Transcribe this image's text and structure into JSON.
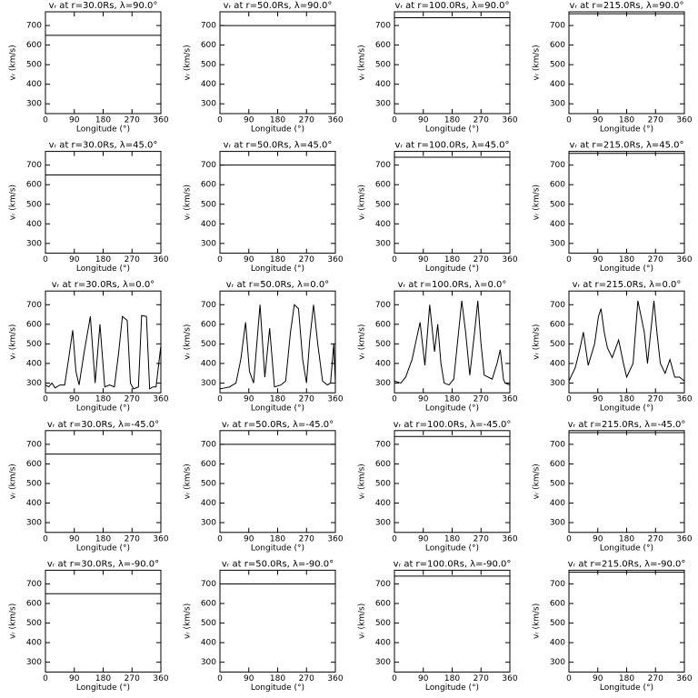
{
  "chart_data": [
    {
      "type": "line",
      "title": "vᵣ at r=30.0Rs,  λ=90.0°",
      "xlabel": "Longitude (°)",
      "ylabel": "vᵣ (km/s)",
      "x": [
        0,
        360
      ],
      "values": [
        650,
        650
      ],
      "xlim": [
        0,
        360
      ],
      "ylim": [
        250,
        770
      ],
      "xticks": [
        0,
        90,
        180,
        270,
        360
      ],
      "yticks": [
        300,
        400,
        500,
        600,
        700
      ],
      "color": "#000000"
    },
    {
      "type": "line",
      "title": "vᵣ at r=50.0Rs,  λ=90.0°",
      "xlabel": "Longitude (°)",
      "ylabel": "vᵣ (km/s)",
      "x": [
        0,
        360
      ],
      "values": [
        700,
        700
      ],
      "xlim": [
        0,
        360
      ],
      "ylim": [
        250,
        770
      ],
      "xticks": [
        0,
        90,
        180,
        270,
        360
      ],
      "yticks": [
        300,
        400,
        500,
        600,
        700
      ],
      "color": "#000000"
    },
    {
      "type": "line",
      "title": "vᵣ at r=100.0Rs,  λ=90.0°",
      "xlabel": "Longitude (°)",
      "ylabel": "vᵣ (km/s)",
      "x": [
        0,
        360
      ],
      "values": [
        740,
        740
      ],
      "xlim": [
        0,
        360
      ],
      "ylim": [
        250,
        770
      ],
      "xticks": [
        0,
        90,
        180,
        270,
        360
      ],
      "yticks": [
        300,
        400,
        500,
        600,
        700
      ],
      "color": "#000000"
    },
    {
      "type": "line",
      "title": "vᵣ at r=215.0Rs,  λ=90.0°",
      "xlabel": "Longitude (°)",
      "ylabel": "vᵣ (km/s)",
      "x": [
        0,
        360
      ],
      "values": [
        760,
        760
      ],
      "xlim": [
        0,
        360
      ],
      "ylim": [
        250,
        770
      ],
      "xticks": [
        0,
        90,
        180,
        270,
        360
      ],
      "yticks": [
        300,
        400,
        500,
        600,
        700
      ],
      "color": "#000000"
    },
    {
      "type": "line",
      "title": "vᵣ at r=30.0Rs,  λ=45.0°",
      "xlabel": "Longitude (°)",
      "ylabel": "vᵣ (km/s)",
      "x": [
        0,
        360
      ],
      "values": [
        650,
        650
      ],
      "xlim": [
        0,
        360
      ],
      "ylim": [
        250,
        770
      ],
      "xticks": [
        0,
        90,
        180,
        270,
        360
      ],
      "yticks": [
        300,
        400,
        500,
        600,
        700
      ],
      "color": "#000000"
    },
    {
      "type": "line",
      "title": "vᵣ at r=50.0Rs,  λ=45.0°",
      "xlabel": "Longitude (°)",
      "ylabel": "vᵣ (km/s)",
      "x": [
        0,
        360
      ],
      "values": [
        700,
        700
      ],
      "xlim": [
        0,
        360
      ],
      "ylim": [
        250,
        770
      ],
      "xticks": [
        0,
        90,
        180,
        270,
        360
      ],
      "yticks": [
        300,
        400,
        500,
        600,
        700
      ],
      "color": "#000000"
    },
    {
      "type": "line",
      "title": "vᵣ at r=100.0Rs,  λ=45.0°",
      "xlabel": "Longitude (°)",
      "ylabel": "vᵣ (km/s)",
      "x": [
        0,
        360
      ],
      "values": [
        740,
        740
      ],
      "xlim": [
        0,
        360
      ],
      "ylim": [
        250,
        770
      ],
      "xticks": [
        0,
        90,
        180,
        270,
        360
      ],
      "yticks": [
        300,
        400,
        500,
        600,
        700
      ],
      "color": "#000000"
    },
    {
      "type": "line",
      "title": "vᵣ at r=215.0Rs,  λ=45.0°",
      "xlabel": "Longitude (°)",
      "ylabel": "vᵣ (km/s)",
      "x": [
        0,
        360
      ],
      "values": [
        760,
        760
      ],
      "xlim": [
        0,
        360
      ],
      "ylim": [
        250,
        770
      ],
      "xticks": [
        0,
        90,
        180,
        270,
        360
      ],
      "yticks": [
        300,
        400,
        500,
        600,
        700
      ],
      "color": "#000000"
    },
    {
      "type": "line",
      "title": "vᵣ at r=30.0Rs,  λ=0.0°",
      "xlabel": "Longitude (°)",
      "ylabel": "vᵣ (km/s)",
      "x": [
        0,
        10,
        20,
        30,
        45,
        60,
        72,
        85,
        95,
        105,
        120,
        140,
        155,
        170,
        185,
        200,
        215,
        228,
        240,
        255,
        265,
        275,
        290,
        300,
        315,
        325,
        335,
        345,
        352,
        360
      ],
      "values": [
        290,
        280,
        300,
        275,
        290,
        290,
        420,
        570,
        360,
        290,
        450,
        640,
        300,
        600,
        280,
        290,
        280,
        450,
        640,
        620,
        300,
        270,
        280,
        645,
        640,
        270,
        280,
        280,
        380,
        490
      ],
      "xlim": [
        0,
        360
      ],
      "ylim": [
        250,
        770
      ],
      "xticks": [
        0,
        90,
        180,
        270,
        360
      ],
      "yticks": [
        300,
        400,
        500,
        600,
        700
      ],
      "color": "#000000"
    },
    {
      "type": "line",
      "title": "vᵣ at r=50.0Rs,  λ=0.0°",
      "xlabel": "Longitude (°)",
      "ylabel": "vᵣ (km/s)",
      "x": [
        0,
        15,
        30,
        50,
        65,
        80,
        92,
        105,
        125,
        140,
        155,
        170,
        190,
        205,
        220,
        232,
        245,
        258,
        270,
        280,
        292,
        305,
        320,
        335,
        345,
        355,
        360
      ],
      "values": [
        270,
        275,
        280,
        300,
        420,
        610,
        360,
        300,
        700,
        330,
        580,
        280,
        290,
        310,
        560,
        700,
        680,
        420,
        300,
        520,
        700,
        500,
        310,
        290,
        300,
        500,
        300
      ],
      "xlim": [
        0,
        360
      ],
      "ylim": [
        250,
        770
      ],
      "xticks": [
        0,
        90,
        180,
        270,
        360
      ],
      "yticks": [
        300,
        400,
        500,
        600,
        700
      ],
      "color": "#000000"
    },
    {
      "type": "line",
      "title": "vᵣ at r=100.0Rs,  λ=0.0°",
      "xlabel": "Longitude (°)",
      "ylabel": "vᵣ (km/s)",
      "x": [
        0,
        20,
        35,
        55,
        68,
        80,
        95,
        110,
        125,
        135,
        145,
        155,
        170,
        185,
        200,
        210,
        222,
        235,
        250,
        260,
        270,
        280,
        305,
        320,
        330,
        340,
        345,
        360
      ],
      "values": [
        310,
        300,
        330,
        420,
        520,
        610,
        390,
        700,
        460,
        600,
        400,
        300,
        290,
        320,
        560,
        720,
        560,
        340,
        560,
        720,
        500,
        340,
        320,
        400,
        470,
        320,
        300,
        290
      ],
      "xlim": [
        0,
        360
      ],
      "ylim": [
        250,
        770
      ],
      "xticks": [
        0,
        90,
        180,
        270,
        360
      ],
      "yticks": [
        300,
        400,
        500,
        600,
        700
      ],
      "color": "#000000"
    },
    {
      "type": "line",
      "title": "vᵣ at r=215.0Rs,  λ=0.0°",
      "xlabel": "Longitude (°)",
      "ylabel": "vᵣ (km/s)",
      "x": [
        0,
        20,
        35,
        45,
        60,
        80,
        92,
        100,
        110,
        120,
        135,
        155,
        170,
        180,
        200,
        215,
        225,
        235,
        245,
        255,
        265,
        275,
        285,
        300,
        315,
        330,
        345,
        360
      ],
      "values": [
        310,
        380,
        480,
        560,
        390,
        500,
        640,
        680,
        560,
        480,
        430,
        520,
        400,
        330,
        400,
        720,
        640,
        560,
        400,
        560,
        720,
        550,
        400,
        350,
        420,
        330,
        330,
        310
      ],
      "xlim": [
        0,
        360
      ],
      "ylim": [
        250,
        770
      ],
      "xticks": [
        0,
        90,
        180,
        270,
        360
      ],
      "yticks": [
        300,
        400,
        500,
        600,
        700
      ],
      "color": "#000000"
    },
    {
      "type": "line",
      "title": "vᵣ at r=30.0Rs,  λ=-45.0°",
      "xlabel": "Longitude (°)",
      "ylabel": "vᵣ (km/s)",
      "x": [
        0,
        360
      ],
      "values": [
        650,
        650
      ],
      "xlim": [
        0,
        360
      ],
      "ylim": [
        250,
        770
      ],
      "xticks": [
        0,
        90,
        180,
        270,
        360
      ],
      "yticks": [
        300,
        400,
        500,
        600,
        700
      ],
      "color": "#000000"
    },
    {
      "type": "line",
      "title": "vᵣ at r=50.0Rs,  λ=-45.0°",
      "xlabel": "Longitude (°)",
      "ylabel": "vᵣ (km/s)",
      "x": [
        0,
        360
      ],
      "values": [
        700,
        700
      ],
      "xlim": [
        0,
        360
      ],
      "ylim": [
        250,
        770
      ],
      "xticks": [
        0,
        90,
        180,
        270,
        360
      ],
      "yticks": [
        300,
        400,
        500,
        600,
        700
      ],
      "color": "#000000"
    },
    {
      "type": "line",
      "title": "vᵣ at r=100.0Rs,  λ=-45.0°",
      "xlabel": "Longitude (°)",
      "ylabel": "vᵣ (km/s)",
      "x": [
        0,
        360
      ],
      "values": [
        740,
        740
      ],
      "xlim": [
        0,
        360
      ],
      "ylim": [
        250,
        770
      ],
      "xticks": [
        0,
        90,
        180,
        270,
        360
      ],
      "yticks": [
        300,
        400,
        500,
        600,
        700
      ],
      "color": "#000000"
    },
    {
      "type": "line",
      "title": "vᵣ at r=215.0Rs,  λ=-45.0°",
      "xlabel": "Longitude (°)",
      "ylabel": "vᵣ (km/s)",
      "x": [
        0,
        360
      ],
      "values": [
        760,
        760
      ],
      "xlim": [
        0,
        360
      ],
      "ylim": [
        250,
        770
      ],
      "xticks": [
        0,
        90,
        180,
        270,
        360
      ],
      "yticks": [
        300,
        400,
        500,
        600,
        700
      ],
      "color": "#000000"
    },
    {
      "type": "line",
      "title": "vᵣ at r=30.0Rs,  λ=-90.0°",
      "xlabel": "Longitude (°)",
      "ylabel": "vᵣ (km/s)",
      "x": [
        0,
        360
      ],
      "values": [
        650,
        650
      ],
      "xlim": [
        0,
        360
      ],
      "ylim": [
        250,
        770
      ],
      "xticks": [
        0,
        90,
        180,
        270,
        360
      ],
      "yticks": [
        300,
        400,
        500,
        600,
        700
      ],
      "color": "#000000"
    },
    {
      "type": "line",
      "title": "vᵣ at r=50.0Rs,  λ=-90.0°",
      "xlabel": "Longitude (°)",
      "ylabel": "vᵣ (km/s)",
      "x": [
        0,
        360
      ],
      "values": [
        700,
        700
      ],
      "xlim": [
        0,
        360
      ],
      "ylim": [
        250,
        770
      ],
      "xticks": [
        0,
        90,
        180,
        270,
        360
      ],
      "yticks": [
        300,
        400,
        500,
        600,
        700
      ],
      "color": "#000000"
    },
    {
      "type": "line",
      "title": "vᵣ at r=100.0Rs,  λ=-90.0°",
      "xlabel": "Longitude (°)",
      "ylabel": "vᵣ (km/s)",
      "x": [
        0,
        360
      ],
      "values": [
        740,
        740
      ],
      "xlim": [
        0,
        360
      ],
      "ylim": [
        250,
        770
      ],
      "xticks": [
        0,
        90,
        180,
        270,
        360
      ],
      "yticks": [
        300,
        400,
        500,
        600,
        700
      ],
      "color": "#000000"
    },
    {
      "type": "line",
      "title": "vᵣ at r=215.0Rs,  λ=-90.0°",
      "xlabel": "Longitude (°)",
      "ylabel": "vᵣ (km/s)",
      "x": [
        0,
        360
      ],
      "values": [
        760,
        760
      ],
      "xlim": [
        0,
        360
      ],
      "ylim": [
        250,
        770
      ],
      "xticks": [
        0,
        90,
        180,
        270,
        360
      ],
      "yticks": [
        300,
        400,
        500,
        600,
        700
      ],
      "color": "#000000"
    }
  ]
}
